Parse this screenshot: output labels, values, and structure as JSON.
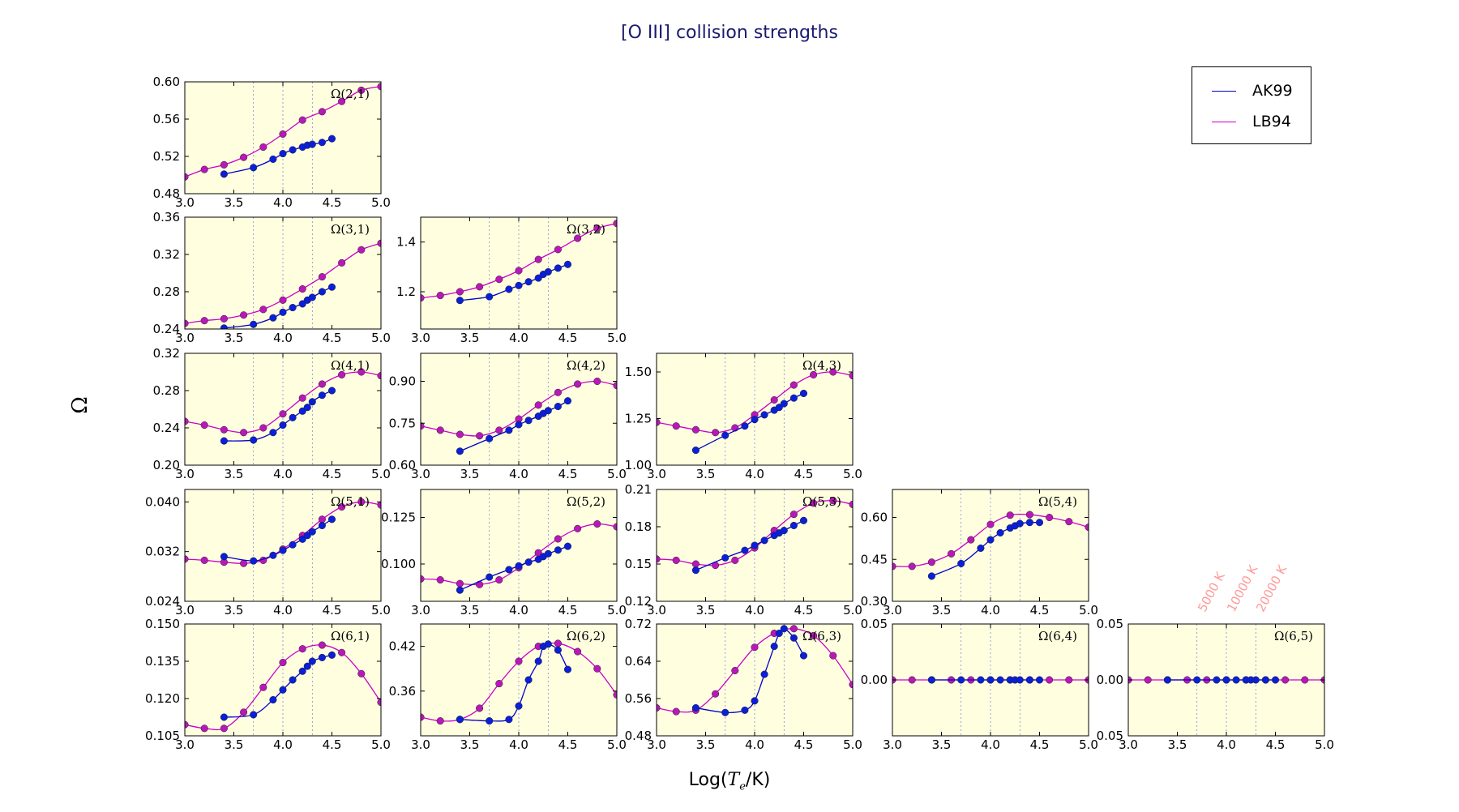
{
  "title": "[O III] collision strengths",
  "ylabel": "Ω",
  "xlabel": "Log(",
  "xlabel_math": "T",
  "xlabel_sub": "e",
  "xlabel_rest": "/K)",
  "colors": {
    "background": "#ffffe0",
    "AK99": "#0000cc",
    "LB94": "#cc00cc",
    "AK99_marker": "#0a1fd9",
    "LB94_marker": "#b818b8",
    "guide_lines": "#9aa0d8",
    "temp_notes": "#ff9a9a",
    "title": "#1a1a6e"
  },
  "legend": {
    "placement": "top-right",
    "entries": [
      {
        "label": "AK99",
        "color": "#0000cc"
      },
      {
        "label": "LB94",
        "color": "#cc00cc"
      }
    ]
  },
  "temperature_notes": [
    "5000 K",
    "10000 K",
    "20000 K"
  ],
  "chart_data": {
    "type": "line",
    "xlim": [
      3.0,
      5.0
    ],
    "xticks": [
      "3.0",
      "3.5",
      "4.0",
      "4.5",
      "5.0"
    ],
    "guides_x": [
      3.699,
      4.0,
      4.301
    ],
    "series_names": [
      "AK99",
      "LB94"
    ],
    "panels": [
      {
        "label": "Ω(2,1)",
        "row": 0,
        "col": 0,
        "ylim": [
          0.48,
          0.6
        ],
        "yticks": [
          "0.48",
          "0.52",
          "0.56",
          "0.60"
        ],
        "AK99": {
          "x": [
            3.4,
            3.7,
            3.9,
            4.0,
            4.1,
            4.2,
            4.25,
            4.3,
            4.4,
            4.5
          ],
          "y": [
            0.501,
            0.508,
            0.517,
            0.523,
            0.527,
            0.53,
            0.532,
            0.533,
            0.535,
            0.539
          ]
        },
        "LB94": {
          "x": [
            3.0,
            3.2,
            3.4,
            3.6,
            3.8,
            4.0,
            4.2,
            4.4,
            4.6,
            4.8,
            5.0
          ],
          "y": [
            0.498,
            0.506,
            0.511,
            0.519,
            0.53,
            0.544,
            0.559,
            0.568,
            0.579,
            0.591,
            0.595
          ]
        }
      },
      {
        "label": "Ω(3,1)",
        "row": 1,
        "col": 0,
        "ylim": [
          0.24,
          0.36
        ],
        "yticks": [
          "0.24",
          "0.28",
          "0.32",
          "0.36"
        ],
        "AK99": {
          "x": [
            3.4,
            3.7,
            3.9,
            4.0,
            4.1,
            4.2,
            4.25,
            4.3,
            4.4,
            4.5
          ],
          "y": [
            0.241,
            0.245,
            0.252,
            0.258,
            0.263,
            0.267,
            0.271,
            0.274,
            0.28,
            0.285
          ]
        },
        "LB94": {
          "x": [
            3.0,
            3.2,
            3.4,
            3.6,
            3.8,
            4.0,
            4.2,
            4.4,
            4.6,
            4.8,
            5.0
          ],
          "y": [
            0.246,
            0.249,
            0.251,
            0.255,
            0.261,
            0.271,
            0.283,
            0.296,
            0.311,
            0.325,
            0.332
          ]
        }
      },
      {
        "label": "Ω(3,2)",
        "row": 1,
        "col": 1,
        "ylim": [
          1.05,
          1.5
        ],
        "yticks": [
          "1.2",
          "1.4"
        ],
        "AK99": {
          "x": [
            3.4,
            3.7,
            3.9,
            4.0,
            4.1,
            4.2,
            4.25,
            4.3,
            4.4,
            4.5
          ],
          "y": [
            1.165,
            1.18,
            1.21,
            1.225,
            1.24,
            1.255,
            1.27,
            1.28,
            1.295,
            1.31
          ]
        },
        "LB94": {
          "x": [
            3.0,
            3.2,
            3.4,
            3.6,
            3.8,
            4.0,
            4.2,
            4.4,
            4.6,
            4.8,
            5.0
          ],
          "y": [
            1.175,
            1.185,
            1.2,
            1.22,
            1.25,
            1.285,
            1.33,
            1.37,
            1.415,
            1.455,
            1.475
          ]
        }
      },
      {
        "label": "Ω(4,1)",
        "row": 2,
        "col": 0,
        "ylim": [
          0.2,
          0.32
        ],
        "yticks": [
          "0.20",
          "0.24",
          "0.28",
          "0.32"
        ],
        "AK99": {
          "x": [
            3.4,
            3.7,
            3.9,
            4.0,
            4.1,
            4.2,
            4.25,
            4.3,
            4.4,
            4.5
          ],
          "y": [
            0.226,
            0.227,
            0.235,
            0.243,
            0.251,
            0.258,
            0.262,
            0.268,
            0.275,
            0.28
          ]
        },
        "LB94": {
          "x": [
            3.0,
            3.2,
            3.4,
            3.6,
            3.8,
            4.0,
            4.2,
            4.4,
            4.6,
            4.8,
            5.0
          ],
          "y": [
            0.247,
            0.243,
            0.238,
            0.235,
            0.24,
            0.255,
            0.272,
            0.287,
            0.297,
            0.3,
            0.296
          ]
        }
      },
      {
        "label": "Ω(4,2)",
        "row": 2,
        "col": 1,
        "ylim": [
          0.6,
          1.0
        ],
        "yticks": [
          "0.60",
          "0.75",
          "0.90"
        ],
        "AK99": {
          "x": [
            3.4,
            3.7,
            3.9,
            4.0,
            4.1,
            4.2,
            4.25,
            4.3,
            4.4,
            4.5
          ],
          "y": [
            0.65,
            0.695,
            0.725,
            0.745,
            0.76,
            0.775,
            0.785,
            0.795,
            0.81,
            0.83
          ]
        },
        "LB94": {
          "x": [
            3.0,
            3.2,
            3.4,
            3.6,
            3.8,
            4.0,
            4.2,
            4.4,
            4.6,
            4.8,
            5.0
          ],
          "y": [
            0.74,
            0.725,
            0.71,
            0.705,
            0.725,
            0.765,
            0.815,
            0.86,
            0.89,
            0.9,
            0.885
          ]
        }
      },
      {
        "label": "Ω(4,3)",
        "row": 2,
        "col": 2,
        "ylim": [
          1.0,
          1.6
        ],
        "yticks": [
          "1.00",
          "1.25",
          "1.50"
        ],
        "AK99": {
          "x": [
            3.4,
            3.7,
            3.9,
            4.0,
            4.1,
            4.2,
            4.25,
            4.3,
            4.4,
            4.5
          ],
          "y": [
            1.08,
            1.16,
            1.21,
            1.245,
            1.27,
            1.295,
            1.31,
            1.33,
            1.36,
            1.385
          ]
        },
        "LB94": {
          "x": [
            3.0,
            3.2,
            3.4,
            3.6,
            3.8,
            4.0,
            4.2,
            4.4,
            4.6,
            4.8,
            5.0
          ],
          "y": [
            1.23,
            1.21,
            1.19,
            1.175,
            1.2,
            1.27,
            1.35,
            1.43,
            1.485,
            1.5,
            1.48
          ]
        }
      },
      {
        "label": "Ω(5,1)",
        "row": 3,
        "col": 0,
        "ylim": [
          0.024,
          0.042
        ],
        "yticks": [
          "0.024",
          "0.032",
          "0.040"
        ],
        "AK99": {
          "x": [
            3.4,
            3.7,
            3.9,
            4.0,
            4.1,
            4.2,
            4.25,
            4.3,
            4.4,
            4.5
          ],
          "y": [
            0.0312,
            0.0305,
            0.0314,
            0.0322,
            0.0331,
            0.034,
            0.0346,
            0.0352,
            0.0362,
            0.0372
          ]
        },
        "LB94": {
          "x": [
            3.0,
            3.2,
            3.4,
            3.6,
            3.8,
            4.0,
            4.2,
            4.4,
            4.6,
            4.8,
            5.0
          ],
          "y": [
            0.0308,
            0.0306,
            0.0303,
            0.0301,
            0.0306,
            0.0324,
            0.0346,
            0.0372,
            0.0392,
            0.04,
            0.0395
          ]
        }
      },
      {
        "label": "Ω(5,2)",
        "row": 3,
        "col": 1,
        "ylim": [
          0.08,
          0.14
        ],
        "yticks": [
          "0.100",
          "0.125"
        ],
        "AK99": {
          "x": [
            3.4,
            3.7,
            3.9,
            4.0,
            4.1,
            4.2,
            4.25,
            4.3,
            4.4,
            4.5
          ],
          "y": [
            0.086,
            0.093,
            0.097,
            0.099,
            0.101,
            0.1025,
            0.104,
            0.1055,
            0.1075,
            0.1095
          ]
        },
        "LB94": {
          "x": [
            3.0,
            3.2,
            3.4,
            3.6,
            3.8,
            4.0,
            4.2,
            4.4,
            4.6,
            4.8,
            5.0
          ],
          "y": [
            0.092,
            0.0915,
            0.0895,
            0.089,
            0.0915,
            0.098,
            0.106,
            0.1135,
            0.119,
            0.1215,
            0.12
          ]
        }
      },
      {
        "label": "Ω(5,3)",
        "row": 3,
        "col": 2,
        "ylim": [
          0.12,
          0.21
        ],
        "yticks": [
          "0.12",
          "0.15",
          "0.18",
          "0.21"
        ],
        "AK99": {
          "x": [
            3.4,
            3.7,
            3.9,
            4.0,
            4.1,
            4.2,
            4.25,
            4.3,
            4.4,
            4.5
          ],
          "y": [
            0.145,
            0.155,
            0.161,
            0.165,
            0.169,
            0.173,
            0.175,
            0.177,
            0.181,
            0.185
          ]
        },
        "LB94": {
          "x": [
            3.0,
            3.2,
            3.4,
            3.6,
            3.8,
            4.0,
            4.2,
            4.4,
            4.6,
            4.8,
            5.0
          ],
          "y": [
            0.154,
            0.153,
            0.15,
            0.149,
            0.153,
            0.163,
            0.177,
            0.19,
            0.199,
            0.201,
            0.198
          ]
        }
      },
      {
        "label": "Ω(5,4)",
        "row": 3,
        "col": 3,
        "ylim": [
          0.3,
          0.7
        ],
        "yticks": [
          "0.30",
          "0.45",
          "0.60"
        ],
        "AK99": {
          "x": [
            3.4,
            3.7,
            3.9,
            4.0,
            4.1,
            4.2,
            4.25,
            4.3,
            4.4,
            4.5
          ],
          "y": [
            0.39,
            0.435,
            0.49,
            0.52,
            0.545,
            0.562,
            0.57,
            0.578,
            0.582,
            0.582
          ]
        },
        "LB94": {
          "x": [
            3.0,
            3.2,
            3.4,
            3.6,
            3.8,
            4.0,
            4.2,
            4.4,
            4.6,
            4.8,
            5.0
          ],
          "y": [
            0.425,
            0.425,
            0.44,
            0.47,
            0.52,
            0.575,
            0.608,
            0.61,
            0.6,
            0.585,
            0.565
          ]
        }
      },
      {
        "label": "Ω(6,1)",
        "row": 4,
        "col": 0,
        "ylim": [
          0.105,
          0.15
        ],
        "yticks": [
          "0.105",
          "0.120",
          "0.135",
          "0.150"
        ],
        "AK99": {
          "x": [
            3.4,
            3.7,
            3.9,
            4.0,
            4.1,
            4.2,
            4.25,
            4.3,
            4.4,
            4.5
          ],
          "y": [
            0.1125,
            0.1135,
            0.1195,
            0.1235,
            0.1275,
            0.131,
            0.133,
            0.135,
            0.1365,
            0.1375
          ]
        },
        "LB94": {
          "x": [
            3.0,
            3.2,
            3.4,
            3.6,
            3.8,
            4.0,
            4.2,
            4.4,
            4.6,
            4.8,
            5.0
          ],
          "y": [
            0.1095,
            0.108,
            0.108,
            0.1145,
            0.1245,
            0.1345,
            0.14,
            0.1415,
            0.1385,
            0.13,
            0.1185
          ]
        }
      },
      {
        "label": "Ω(6,2)",
        "row": 4,
        "col": 1,
        "ylim": [
          0.3,
          0.45
        ],
        "yticks": [
          "0.36",
          "0.42"
        ],
        "AK99": {
          "x": [
            3.4,
            3.7,
            3.9,
            4.0,
            4.1,
            4.2,
            4.25,
            4.3,
            4.4,
            4.5
          ],
          "y": [
            0.322,
            0.32,
            0.322,
            0.34,
            0.375,
            0.4,
            0.42,
            0.423,
            0.415,
            0.389
          ]
        },
        "LB94": {
          "x": [
            3.0,
            3.2,
            3.4,
            3.6,
            3.8,
            4.0,
            4.2,
            4.4,
            4.6,
            4.8,
            5.0
          ],
          "y": [
            0.325,
            0.32,
            0.322,
            0.337,
            0.37,
            0.4,
            0.42,
            0.424,
            0.413,
            0.39,
            0.355
          ]
        }
      },
      {
        "label": "Ω(6,3)",
        "row": 4,
        "col": 2,
        "ylim": [
          0.48,
          0.72
        ],
        "yticks": [
          "0.48",
          "0.56",
          "0.64",
          "0.72"
        ],
        "AK99": {
          "x": [
            3.4,
            3.7,
            3.9,
            4.0,
            4.1,
            4.2,
            4.25,
            4.3,
            4.4,
            4.5
          ],
          "y": [
            0.54,
            0.53,
            0.535,
            0.555,
            0.612,
            0.672,
            0.7,
            0.71,
            0.69,
            0.652
          ]
        },
        "LB94": {
          "x": [
            3.0,
            3.2,
            3.4,
            3.6,
            3.8,
            4.0,
            4.2,
            4.4,
            4.6,
            4.8,
            5.0
          ],
          "y": [
            0.54,
            0.532,
            0.535,
            0.57,
            0.62,
            0.67,
            0.7,
            0.71,
            0.695,
            0.652,
            0.59
          ]
        }
      },
      {
        "label": "Ω(6,4)",
        "row": 4,
        "col": 3,
        "ylim": [
          -0.05,
          0.05
        ],
        "yticks": [
          "0.05",
          "0.00"
        ],
        "AK99": {
          "x": [
            3.4,
            3.7,
            3.9,
            4.0,
            4.1,
            4.2,
            4.25,
            4.3,
            4.4,
            4.5
          ],
          "y": [
            0,
            0,
            0,
            0,
            0,
            0,
            0,
            0,
            0,
            0
          ]
        },
        "LB94": {
          "x": [
            3.0,
            3.2,
            3.4,
            3.6,
            3.8,
            4.0,
            4.2,
            4.4,
            4.6,
            4.8,
            5.0
          ],
          "y": [
            0,
            0,
            0,
            0,
            0,
            0,
            0,
            0,
            0,
            0,
            0
          ]
        }
      },
      {
        "label": "Ω(6,5)",
        "row": 4,
        "col": 4,
        "ylim": [
          -0.05,
          0.05
        ],
        "yticks": [
          "0.05",
          "0.00",
          "0.05"
        ],
        "AK99": {
          "x": [
            3.4,
            3.7,
            3.9,
            4.0,
            4.1,
            4.2,
            4.25,
            4.3,
            4.4,
            4.5
          ],
          "y": [
            0,
            0,
            0,
            0,
            0,
            0,
            0,
            0,
            0,
            0
          ]
        },
        "LB94": {
          "x": [
            3.0,
            3.2,
            3.4,
            3.6,
            3.8,
            4.0,
            4.2,
            4.4,
            4.6,
            4.8,
            5.0
          ],
          "y": [
            0,
            0,
            0,
            0,
            0,
            0,
            0,
            0,
            0,
            0,
            0
          ]
        }
      }
    ]
  }
}
